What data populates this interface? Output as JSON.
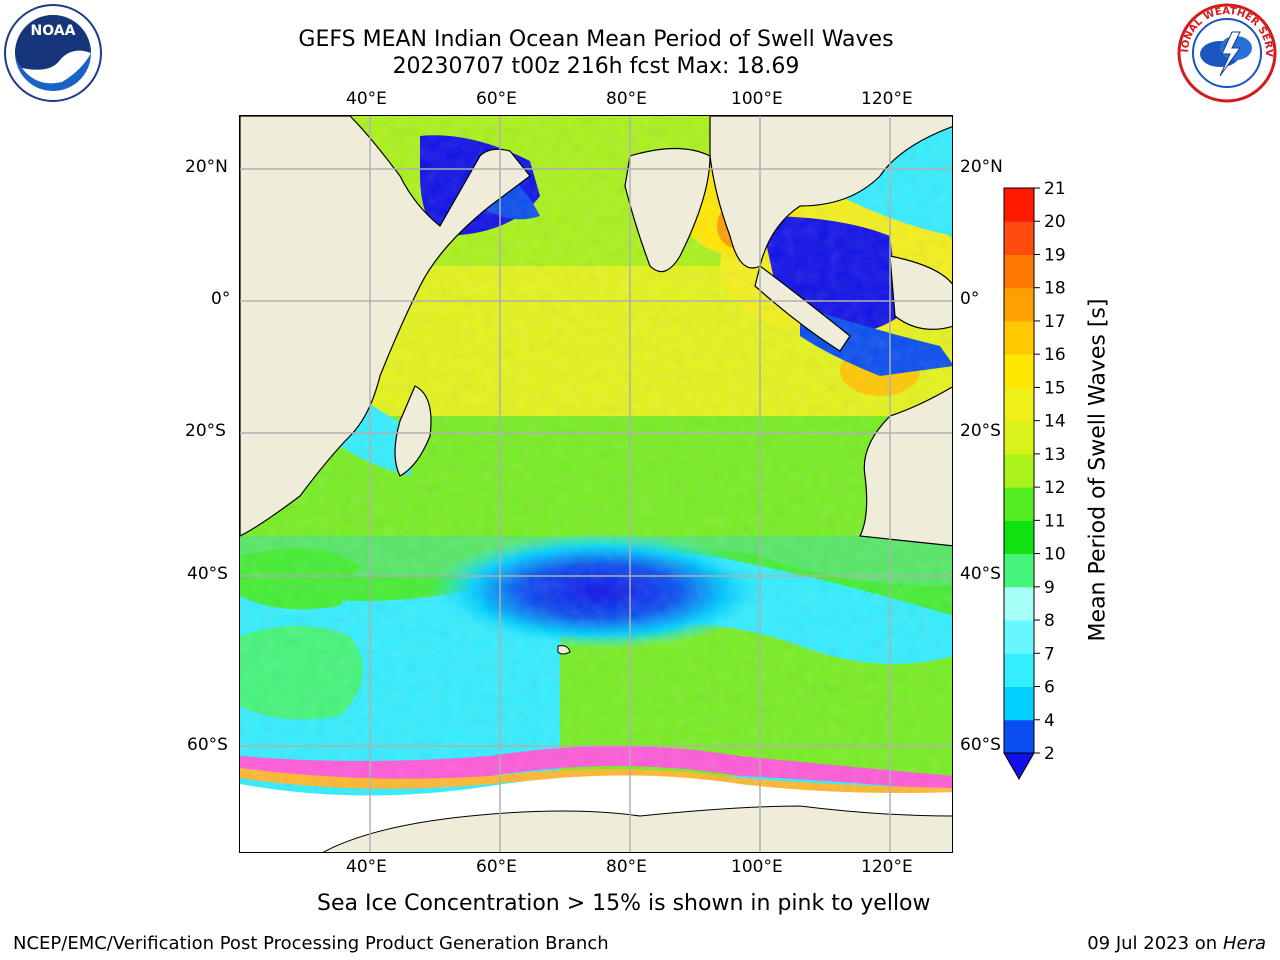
{
  "title": {
    "line1": "GEFS MEAN Indian Ocean Mean Period of Swell Waves",
    "line2": "20230707 t00z 216h fcst   Max: 18.69"
  },
  "map": {
    "lon_labels": [
      "40°E",
      "60°E",
      "80°E",
      "100°E",
      "120°E"
    ],
    "lat_labels": [
      "20°N",
      "0°",
      "20°S",
      "40°S",
      "60°S"
    ],
    "lon_range": [
      20,
      130
    ],
    "lat_range": [
      -72,
      28
    ]
  },
  "colorbar": {
    "title": "Mean Period of Swell Waves [s]",
    "ticks": [
      "2",
      "4",
      "6",
      "7",
      "8",
      "9",
      "10",
      "11",
      "12",
      "13",
      "14",
      "15",
      "16",
      "17",
      "18",
      "19",
      "20",
      "21"
    ],
    "colors": [
      "#0a4ef0",
      "#00cfff",
      "#33eeff",
      "#66f7ff",
      "#a6fff7",
      "#44f57a",
      "#11e011",
      "#55ee22",
      "#aaf21a",
      "#d8f21a",
      "#f0f01a",
      "#ffe800",
      "#ffc800",
      "#ffa000",
      "#ff7800",
      "#ff4a10",
      "#ff1a00"
    ],
    "under_color": "#1010e8"
  },
  "caption": "Sea Ice Concentration > 15% is shown in pink to yellow",
  "footer": {
    "left": "NCEP/EMC/Verification Post Processing Product Generation Branch",
    "date": "09 Jul 2023 on ",
    "machine": "Hera"
  },
  "logos": {
    "noaa_text": "NOAA",
    "nws_text": "NATIONAL WEATHER SERVICE"
  }
}
